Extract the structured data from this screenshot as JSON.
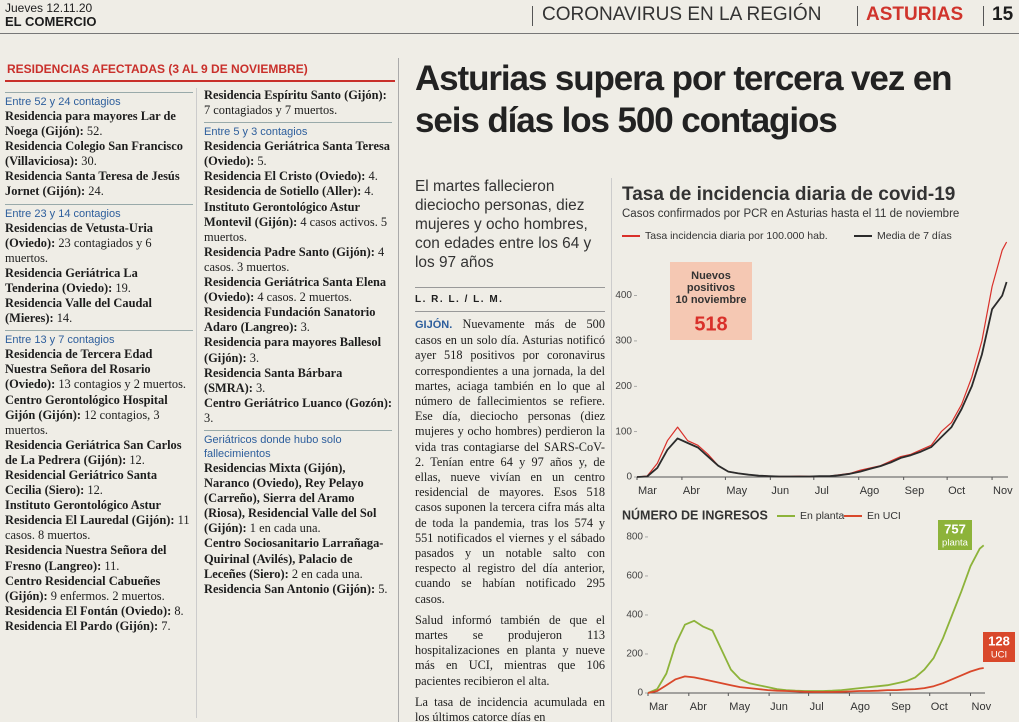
{
  "header": {
    "date": "Jueves 12.11.20",
    "paper": "EL COMERCIO",
    "section": "CORONAVIRUS EN LA REGIÓN",
    "region": "ASTURIAS",
    "page": "15"
  },
  "residences": {
    "title": "RESIDENCIAS AFECTADAS (3 AL 9 DE NOVIEMBRE)",
    "columns": [
      {
        "groups": [
          {
            "heading": "Entre 52 y 24 contagios",
            "items": [
              {
                "name": "Residencia para mayores Lar de Noega (Gijón):",
                "detail": "52."
              },
              {
                "name": "Residencia Colegio San Francisco (Villaviciosa):",
                "detail": "30."
              },
              {
                "name": "Residencia Santa Teresa de Jesús Jornet (Gijón):",
                "detail": "24."
              }
            ]
          },
          {
            "heading": "Entre 23 y 14 contagios",
            "items": [
              {
                "name": "Residencias de Vetusta-Uria (Oviedo):",
                "detail": "23 contagiados y 6 muertos."
              },
              {
                "name": "Residencia Geriátrica La Tenderina (Oviedo):",
                "detail": "19."
              },
              {
                "name": "Residencia Valle del Caudal (Mieres):",
                "detail": "14."
              }
            ]
          },
          {
            "heading": "Entre 13 y 7 contagios",
            "items": [
              {
                "name": "Residencia de Tercera Edad Nuestra Señora del Rosario (Oviedo):",
                "detail": "13 contagios y 2 muertos."
              },
              {
                "name": "Centro Gerontológico Hospital Gijón (Gijón):",
                "detail": "12 contagios, 3 muertos."
              },
              {
                "name": "Residencia Geriátrica San Carlos de La Pedrera (Gijón):",
                "detail": "12."
              },
              {
                "name": "Residencial Geriátrico Santa Cecilia (Siero):",
                "detail": "12."
              },
              {
                "name": "Instituto Gerontológico Astur Residencia El Lauredal (Gijón):",
                "detail": "11 casos. 8 muertos."
              },
              {
                "name": "Residencia Nuestra Señora del Fresno (Langreo):",
                "detail": "11."
              },
              {
                "name": "Centro Residencial Cabueñes (Gijón):",
                "detail": "9 enfermos. 2 muertos."
              },
              {
                "name": "Residencia El Fontán (Oviedo):",
                "detail": "8."
              },
              {
                "name": "Residencia El Pardo (Gijón):",
                "detail": "7."
              }
            ]
          }
        ]
      },
      {
        "groups": [
          {
            "items": [
              {
                "name": "Residencia Espíritu Santo (Gijón):",
                "detail": "7 contagiados y 7 muertos."
              }
            ]
          },
          {
            "heading": "Entre 5 y 3 contagios",
            "items": [
              {
                "name": "Residencia Geriátrica Santa Teresa (Oviedo):",
                "detail": "5."
              },
              {
                "name": "Residencia El Cristo (Oviedo):",
                "detail": "4."
              },
              {
                "name": "Residencia de Sotiello (Aller):",
                "detail": "4."
              },
              {
                "name": "Instituto Gerontológico Astur Montevil (Gijón):",
                "detail": "4 casos activos. 5 muertos."
              },
              {
                "name": "Residencia Padre Santo (Gijón):",
                "detail": "4 casos. 3 muertos."
              },
              {
                "name": "Residencia Geriátrica Santa Elena (Oviedo):",
                "detail": "4 casos. 2 muertos."
              },
              {
                "name": "Residencia Fundación Sanatorio Adaro (Langreo):",
                "detail": "3."
              },
              {
                "name": "Residencia para mayores Ballesol (Gijón):",
                "detail": "3."
              },
              {
                "name": "Residencia Santa Bárbara (SMRA):",
                "detail": "3."
              },
              {
                "name": "Centro Geriátrico Luanco (Gozón):",
                "detail": "3."
              }
            ]
          },
          {
            "heading": "Geriátricos donde hubo solo fallecimientos",
            "items": [
              {
                "name": "Residencias Mixta (Gijón), Naranco (Oviedo), Rey Pelayo (Carreño), Sierra del Aramo (Riosa), Residencial Valle del Sol (Gijón):",
                "detail": "1 en cada una."
              },
              {
                "name": "Centro Sociosanitario Larrañaga-Quirinal (Avilés), Palacio de Leceñes (Siero):",
                "detail": "2 en cada una."
              },
              {
                "name": "Residencia San Antonio (Gijón):",
                "detail": "5."
              }
            ]
          }
        ]
      }
    ]
  },
  "article": {
    "headline": "Asturias supera por tercera vez en seis días los 500 contagios",
    "subhead": "El martes fallecieron dieciocho personas, diez mujeres y ocho hombres, con edades entre los 64 y los 97 años",
    "byline": "L. R. L. / L. M.",
    "dateline": "GIJÓN.",
    "paragraphs": [
      "Nuevamente más de 500 casos en un solo día. Asturias notificó ayer 518 positivos por coronavirus correspondientes a una jornada, la del martes, aciaga también en lo que al número de fallecimientos se refiere. Ese día, dieciocho personas (diez mujeres y ocho hombres) perdieron la vida tras contagiarse del SARS-CoV-2. Tenían entre 64 y 97 años y, de ellas, nueve vivían en un centro residencial de mayores. Esos 518 casos suponen la tercera cifra más alta de toda la pandemia, tras los 574 y 551 notificados el viernes y el sábado pasados y un notable salto con respecto al registro del día anterior, cuando se habían notificado 295 casos.",
      "Salud informó también de que el martes se produjeron 113 hospitalizaciones en planta y nueve más en UCI, mientras que 106 pacientes recibieron el alta.",
      "La tasa de incidencia acumulada en los últimos catorce días en"
    ]
  },
  "chart_data": [
    {
      "type": "line",
      "title": "Tasa de incidencia diaria de covid-19",
      "subtitle": "Casos confirmados por PCR en Asturias hasta el 11 de noviembre",
      "xlim": [
        0,
        256
      ],
      "xticks": [
        {
          "value": 0,
          "label": "Mar"
        },
        {
          "value": 31,
          "label": "Abr"
        },
        {
          "value": 61,
          "label": "May"
        },
        {
          "value": 92,
          "label": "Jun"
        },
        {
          "value": 122,
          "label": "Jul"
        },
        {
          "value": 153,
          "label": "Ago"
        },
        {
          "value": 184,
          "label": "Sep"
        },
        {
          "value": 214,
          "label": "Oct"
        },
        {
          "value": 245,
          "label": "Nov"
        }
      ],
      "ylim": [
        0,
        560
      ],
      "yticks": [
        0,
        100,
        200,
        300,
        400
      ],
      "grid": false,
      "x": [
        0,
        7,
        14,
        21,
        28,
        35,
        42,
        49,
        56,
        63,
        70,
        77,
        84,
        91,
        98,
        105,
        112,
        119,
        126,
        133,
        140,
        147,
        154,
        161,
        168,
        175,
        182,
        189,
        196,
        203,
        210,
        217,
        224,
        231,
        238,
        245,
        252,
        255
      ],
      "series": [
        {
          "name": "Tasa incidencia diaria por 100.000 hab.",
          "color": "#d9302a",
          "values": [
            0,
            2,
            30,
            80,
            110,
            80,
            70,
            50,
            25,
            12,
            8,
            5,
            3,
            2,
            1,
            1,
            2,
            1,
            2,
            2,
            5,
            8,
            15,
            20,
            25,
            35,
            45,
            50,
            60,
            70,
            100,
            120,
            160,
            220,
            300,
            420,
            500,
            518
          ]
        },
        {
          "name": "Media de 7 días",
          "color": "#2b2b2b",
          "values": [
            0,
            1,
            20,
            60,
            85,
            75,
            65,
            45,
            25,
            12,
            8,
            5,
            3,
            2,
            1,
            1,
            1,
            1,
            2,
            2,
            4,
            7,
            12,
            18,
            24,
            32,
            42,
            48,
            56,
            66,
            88,
            110,
            150,
            200,
            270,
            370,
            400,
            430
          ]
        }
      ],
      "annotation": {
        "lines": [
          "Nuevos",
          "positivos",
          "10 noviembre"
        ],
        "value": 518
      }
    },
    {
      "type": "line",
      "title": "NÚMERO DE INGRESOS",
      "xlim": [
        0,
        256
      ],
      "xticks": [
        {
          "value": 0,
          "label": "Mar"
        },
        {
          "value": 31,
          "label": "Abr"
        },
        {
          "value": 61,
          "label": "May"
        },
        {
          "value": 92,
          "label": "Jun"
        },
        {
          "value": 122,
          "label": "Jul"
        },
        {
          "value": 153,
          "label": "Ago"
        },
        {
          "value": 184,
          "label": "Sep"
        },
        {
          "value": 214,
          "label": "Oct"
        },
        {
          "value": 245,
          "label": "Nov"
        }
      ],
      "ylim": [
        0,
        810
      ],
      "yticks": [
        0,
        200,
        400,
        600,
        800
      ],
      "grid": false,
      "x": [
        0,
        7,
        14,
        21,
        28,
        35,
        42,
        49,
        56,
        63,
        70,
        77,
        84,
        91,
        98,
        105,
        112,
        119,
        126,
        133,
        140,
        147,
        154,
        161,
        168,
        175,
        182,
        189,
        196,
        203,
        210,
        217,
        224,
        231,
        238,
        245,
        252,
        255
      ],
      "series": [
        {
          "name": "En planta",
          "color": "#8db33a",
          "values": [
            0,
            20,
            100,
            250,
            350,
            370,
            340,
            320,
            220,
            120,
            70,
            50,
            40,
            30,
            20,
            15,
            12,
            10,
            10,
            10,
            12,
            15,
            20,
            25,
            30,
            35,
            40,
            50,
            60,
            80,
            120,
            180,
            280,
            400,
            520,
            650,
            740,
            757
          ]
        },
        {
          "name": "En UCI",
          "color": "#d9482b",
          "values": [
            0,
            10,
            40,
            70,
            85,
            80,
            70,
            60,
            50,
            40,
            30,
            25,
            20,
            15,
            12,
            10,
            8,
            6,
            5,
            5,
            5,
            6,
            8,
            10,
            10,
            12,
            15,
            15,
            18,
            20,
            25,
            35,
            50,
            70,
            90,
            110,
            125,
            128
          ]
        }
      ],
      "annotations": [
        {
          "value": 757,
          "label": "planta"
        },
        {
          "value": 128,
          "label": "UCI"
        }
      ]
    }
  ]
}
